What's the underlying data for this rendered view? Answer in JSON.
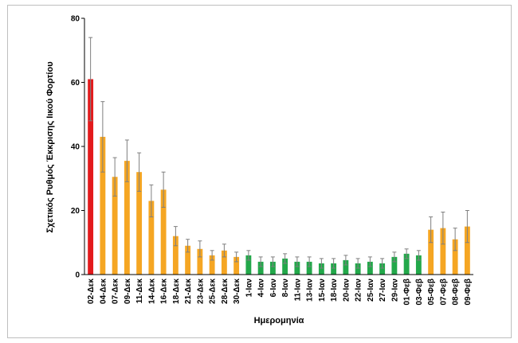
{
  "chart_data": {
    "type": "bar",
    "title": "",
    "xlabel": "Ημερομηνία",
    "ylabel": "Σχετικός Ρυθμός Έκκρισης Ιικού Φορτίου",
    "ylim": [
      0,
      80
    ],
    "yticks": [
      0,
      20,
      40,
      60,
      80
    ],
    "grid": false,
    "legend": "none",
    "colors": {
      "red": "#e31a1c",
      "orange": "#f5a623",
      "green": "#22a84a",
      "error": "#7f7f7f",
      "frame": "#bfbfbf"
    },
    "categories": [
      "02-Δεκ",
      "04-Δεκ",
      "07-Δεκ",
      "09-Δεκ",
      "11-Δεκ",
      "14-Δεκ",
      "16-Δεκ",
      "18-Δεκ",
      "21-Δεκ",
      "23-Δεκ",
      "25-Δεκ",
      "28-Δεκ",
      "30-Δεκ",
      "1-Ιαν",
      "4-Ιαν",
      "6-Ιαν",
      "8-Ιαν",
      "11-Ιαν",
      "13-Ιαν",
      "15-Ιαν",
      "18-Ιαν",
      "20-Ιαν",
      "22-Ιαν",
      "25-Ιαν",
      "27-Ιαν",
      "29-Ιαν",
      "01-Φεβ",
      "03-Φεβ",
      "05-Φεβ",
      "07-Φεβ",
      "08-Φεβ",
      "09-Φεβ"
    ],
    "values": [
      61,
      43,
      30.5,
      35.5,
      32,
      23,
      26.5,
      12,
      9,
      8,
      6,
      7.5,
      5.5,
      6,
      4,
      4,
      5,
      4,
      4,
      3.5,
      3.5,
      4.5,
      3.5,
      4,
      3.5,
      5.5,
      6.5,
      6,
      14,
      14.5,
      11,
      15
    ],
    "errors": [
      13,
      11,
      6,
      6.5,
      6,
      5,
      5.5,
      3,
      2,
      2.5,
      1.5,
      2,
      1.5,
      1.5,
      1.5,
      1.5,
      1.5,
      1.5,
      1.5,
      1.5,
      1.5,
      1.5,
      1.5,
      1.5,
      1.5,
      1.5,
      1.5,
      1.5,
      4,
      5,
      3.5,
      5
    ],
    "bar_colors": [
      "red",
      "orange",
      "orange",
      "orange",
      "orange",
      "orange",
      "orange",
      "orange",
      "orange",
      "orange",
      "orange",
      "orange",
      "orange",
      "green",
      "green",
      "green",
      "green",
      "green",
      "green",
      "green",
      "green",
      "green",
      "green",
      "green",
      "green",
      "green",
      "green",
      "green",
      "orange",
      "orange",
      "orange",
      "orange"
    ]
  }
}
